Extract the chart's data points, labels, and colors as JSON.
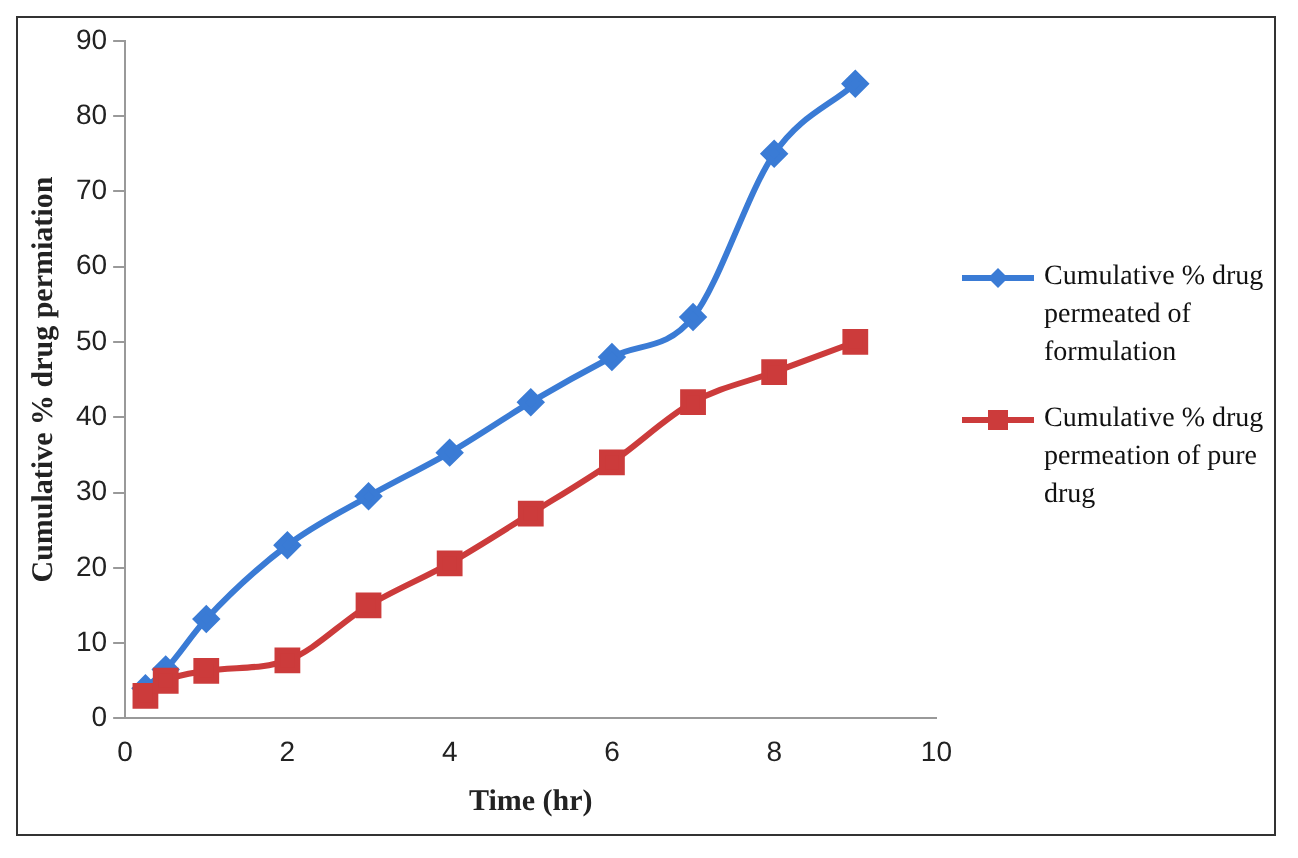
{
  "chart_data": {
    "type": "line",
    "xlabel": "Time (hr)",
    "ylabel": "Cumulative % drug permiation",
    "xlim": [
      0,
      10
    ],
    "xticks": [
      0,
      2,
      4,
      6,
      8,
      10
    ],
    "ylim": [
      0,
      90
    ],
    "yticks": [
      0,
      10,
      20,
      30,
      40,
      50,
      60,
      70,
      80,
      90
    ],
    "grid": false,
    "legend": "right",
    "series": [
      {
        "name": "Cumulative % drug permeated of formulation",
        "color": "#3a7bd5",
        "marker": "diamond",
        "x": [
          0.25,
          0.5,
          1,
          2,
          3,
          4,
          5,
          6,
          7,
          8,
          9
        ],
        "values": [
          4,
          6.5,
          13.2,
          23,
          29.5,
          35.3,
          42,
          48,
          53.3,
          75,
          84.3
        ]
      },
      {
        "name": "Cumulative % drug permeation of pure drug",
        "color": "#cc3b3b",
        "marker": "square",
        "x": [
          0.25,
          0.5,
          1,
          2,
          3,
          4,
          5,
          6,
          7,
          8,
          9
        ],
        "values": [
          3,
          5,
          6.3,
          7.7,
          15,
          20.6,
          27.2,
          34,
          42,
          46,
          50
        ]
      }
    ]
  }
}
